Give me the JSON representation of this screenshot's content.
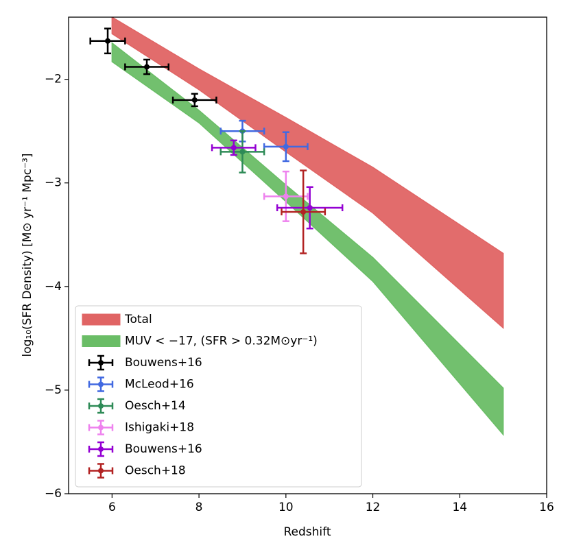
{
  "chart_data": {
    "type": "errorbar",
    "x_label": "Redshift",
    "y_label": "log₁₀(SFR Density) [M⊙ yr⁻¹ Mpc⁻³]",
    "xlim": [
      5,
      16
    ],
    "xticks": [
      6,
      8,
      10,
      12,
      14,
      16
    ],
    "ylim": [
      -6,
      -1.4
    ],
    "yticks": [
      {
        "value": -6,
        "label": "−6"
      },
      {
        "value": -5,
        "label": "−5"
      },
      {
        "value": -4,
        "label": "−4"
      },
      {
        "value": -3,
        "label": "−3"
      },
      {
        "value": -2,
        "label": "−2"
      }
    ],
    "legend": "lower left",
    "bands": [
      {
        "name": "Total",
        "color": "#e06464",
        "x": [
          6,
          8,
          10,
          12,
          15
        ],
        "upper": [
          -1.4,
          -1.9,
          -2.37,
          -2.85,
          -3.68
        ],
        "lower": [
          -1.56,
          -2.1,
          -2.7,
          -3.29,
          -4.4
        ]
      },
      {
        "name": "MUV < −17,  (SFR > 0.32M⊙yr⁻¹)",
        "color": "#6abd66",
        "x": [
          6,
          8,
          10,
          12,
          15
        ],
        "upper": [
          -1.65,
          -2.3,
          -3.02,
          -3.72,
          -4.98
        ],
        "lower": [
          -1.83,
          -2.42,
          -3.18,
          -3.95,
          -5.43
        ]
      }
    ],
    "series": [
      {
        "name": "Bouwens+16",
        "color": "#000000",
        "x": [
          5.9,
          6.8,
          7.9
        ],
        "values": [
          -1.63,
          -1.88,
          -2.2
        ],
        "xerr": [
          0.4,
          0.5,
          0.5
        ],
        "yerr": [
          0.12,
          0.07,
          0.06
        ]
      },
      {
        "name": "McLeod+16",
        "color": "#4169e1",
        "x": [
          9.0,
          10.0
        ],
        "values": [
          -2.5,
          -2.65
        ],
        "xerr": [
          0.5,
          0.5
        ],
        "yerr": [
          0.1,
          0.14
        ]
      },
      {
        "name": "Oesch+14",
        "color": "#2e8b57",
        "x": [
          9.0
        ],
        "values": [
          -2.7
        ],
        "xerr": [
          0.5
        ],
        "yerr": [
          0.2
        ]
      },
      {
        "name": "Ishigaki+18",
        "color": "#ee82ee",
        "x": [
          10.0
        ],
        "values": [
          -3.13
        ],
        "xerr": [
          0.5
        ],
        "yerr": [
          0.24
        ]
      },
      {
        "name": "Bouwens+16",
        "color": "#9400d3",
        "x": [
          8.8,
          10.55
        ],
        "values": [
          -2.66,
          -3.24
        ],
        "xerr": [
          0.5,
          0.75
        ],
        "yerr": [
          0.07,
          0.2
        ]
      },
      {
        "name": "Oesch+18",
        "color": "#b22222",
        "x": [
          10.4
        ],
        "values": [
          -3.28
        ],
        "xerr": [
          0.5
        ],
        "yerr": [
          0.4
        ]
      }
    ]
  }
}
